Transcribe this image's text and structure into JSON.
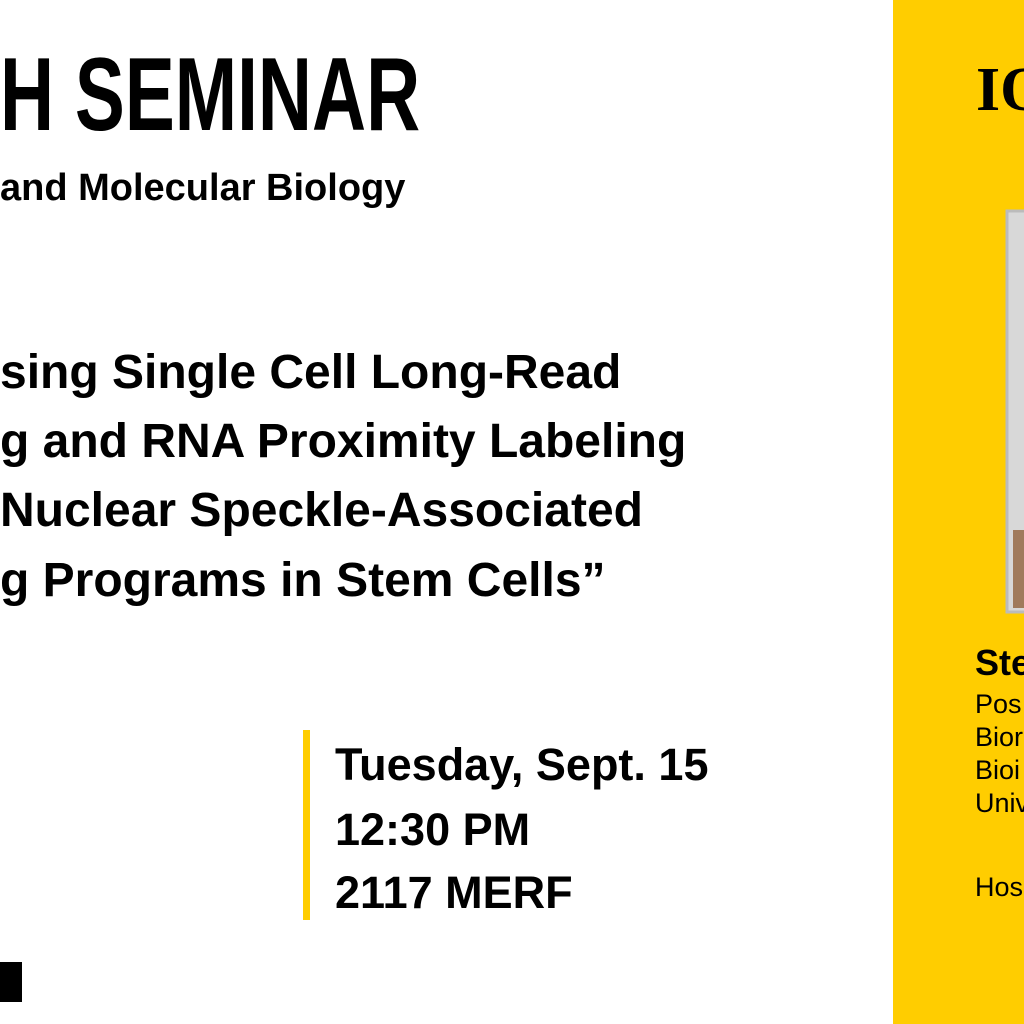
{
  "header": {
    "title": "H SEMINAR",
    "department": "and Molecular Biology"
  },
  "talk": {
    "title_lines": [
      "sing Single Cell Long-Read",
      "g and RNA Proximity Labeling",
      "Nuclear Speckle-Associated",
      "g Programs in Stem Cells”"
    ]
  },
  "event": {
    "date": "Tuesday, Sept. 15",
    "time": "12:30 PM",
    "location": "2117 MERF"
  },
  "sidebar": {
    "logo": "IO",
    "speaker": "Ste",
    "affiliation_lines": [
      "Pos",
      "Bior",
      "Bioi",
      "Univ"
    ],
    "host": "Hos"
  }
}
